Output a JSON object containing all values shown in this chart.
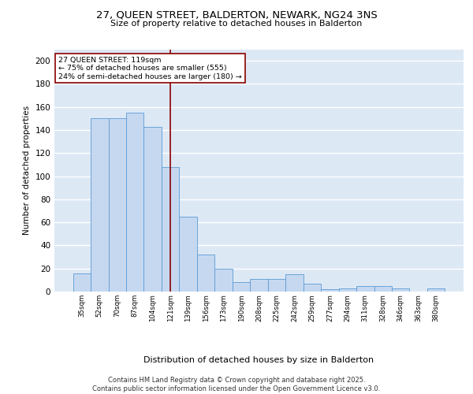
{
  "title_line1": "27, QUEEN STREET, BALDERTON, NEWARK, NG24 3NS",
  "title_line2": "Size of property relative to detached houses in Balderton",
  "xlabel": "Distribution of detached houses by size in Balderton",
  "ylabel": "Number of detached properties",
  "categories": [
    "35sqm",
    "52sqm",
    "70sqm",
    "87sqm",
    "104sqm",
    "121sqm",
    "139sqm",
    "156sqm",
    "173sqm",
    "190sqm",
    "208sqm",
    "225sqm",
    "242sqm",
    "259sqm",
    "277sqm",
    "294sqm",
    "311sqm",
    "328sqm",
    "346sqm",
    "363sqm",
    "380sqm"
  ],
  "values": [
    16,
    150,
    150,
    155,
    143,
    108,
    65,
    32,
    20,
    8,
    11,
    11,
    15,
    7,
    2,
    3,
    5,
    5,
    3,
    0,
    3
  ],
  "bar_color": "#c5d8f0",
  "bar_edge_color": "#5b9bd5",
  "background_color": "#dde8f5",
  "grid_color": "#ffffff",
  "property_line_x": 5.0,
  "property_line_color": "#8b0000",
  "annotation_text": "27 QUEEN STREET: 119sqm\n← 75% of detached houses are smaller (555)\n24% of semi-detached houses are larger (180) →",
  "annotation_box_color": "#8b0000",
  "annotation_fill": "#ffffff",
  "footer_text": "Contains HM Land Registry data © Crown copyright and database right 2025.\nContains public sector information licensed under the Open Government Licence v3.0.",
  "ylim": [
    0,
    210
  ],
  "yticks": [
    0,
    20,
    40,
    60,
    80,
    100,
    120,
    140,
    160,
    180,
    200
  ]
}
